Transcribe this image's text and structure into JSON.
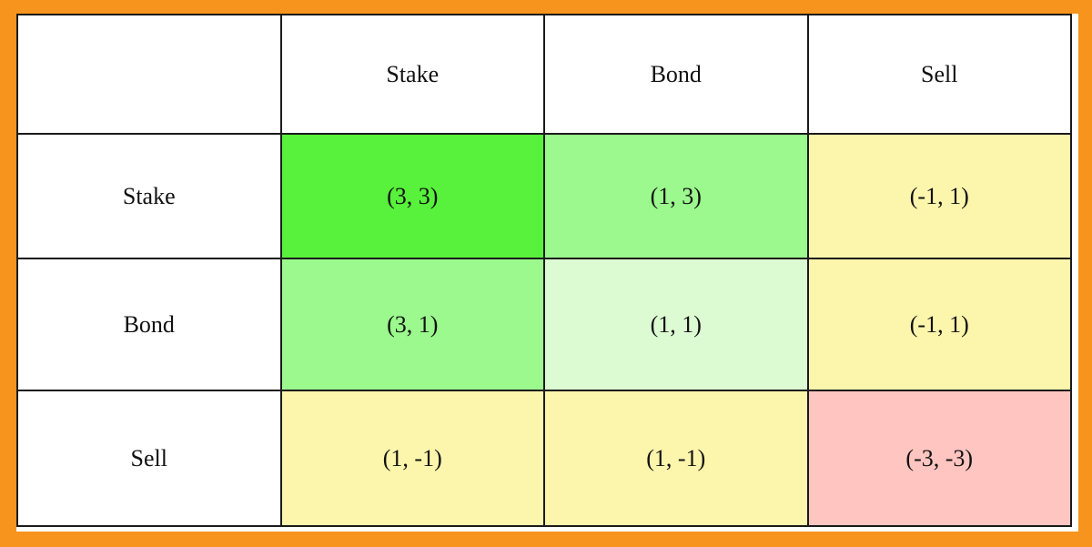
{
  "frame": {
    "color": "#F7941D",
    "grid_line_color": "#1a1a1a",
    "page_background": "#ffffff"
  },
  "table": {
    "column_headers": [
      "Stake",
      "Bond",
      "Sell"
    ],
    "row_headers": [
      "Stake",
      "Bond",
      "Sell"
    ],
    "cells": [
      [
        {
          "label": "(3, 3)",
          "color": "#58F13C"
        },
        {
          "label": "(1, 3)",
          "color": "#9BF98D"
        },
        {
          "label": "(-1, 1)",
          "color": "#FCF5AC"
        }
      ],
      [
        {
          "label": "(3, 1)",
          "color": "#9BF98D"
        },
        {
          "label": "(1, 1)",
          "color": "#DDFBD3"
        },
        {
          "label": "(-1, 1)",
          "color": "#FCF5AC"
        }
      ],
      [
        {
          "label": "(1, -1)",
          "color": "#FCF5AC"
        },
        {
          "label": "(1, -1)",
          "color": "#FCF5AC"
        },
        {
          "label": "(-3, -3)",
          "color": "#FFC5C1"
        }
      ]
    ]
  },
  "chart_data": {
    "type": "table",
    "title": "",
    "column_headers": [
      "Stake",
      "Bond",
      "Sell"
    ],
    "row_headers": [
      "Stake",
      "Bond",
      "Sell"
    ],
    "payoffs": [
      [
        [
          3,
          3
        ],
        [
          1,
          3
        ],
        [
          -1,
          1
        ]
      ],
      [
        [
          3,
          1
        ],
        [
          1,
          1
        ],
        [
          -1,
          1
        ]
      ],
      [
        [
          1,
          -1
        ],
        [
          1,
          -1
        ],
        [
          -3,
          -3
        ]
      ]
    ],
    "cell_colors": [
      [
        "#58F13C",
        "#9BF98D",
        "#FCF5AC"
      ],
      [
        "#9BF98D",
        "#DDFBD3",
        "#FCF5AC"
      ],
      [
        "#FCF5AC",
        "#FCF5AC",
        "#FFC5C1"
      ]
    ],
    "legend_position": "none",
    "grid": true
  }
}
